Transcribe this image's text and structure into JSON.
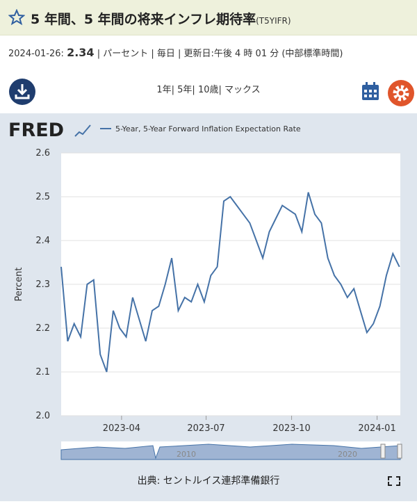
{
  "header": {
    "title": "5 年間、5 年間の将来インフレ期待率",
    "series_id": "(T5YIFR)",
    "date": "2024-01-26:",
    "value": "2.34",
    "meta": "| パーセント | 毎日 | 更新日:午後 4 時 01 分 (中部標準時間)",
    "ranges": "1年| 5年| 10歳| マックス"
  },
  "logo": "FRED",
  "source": "出典: セントルイス連邦準備銀行",
  "navigator": {
    "labels": [
      "2010",
      "2020"
    ]
  },
  "chart_data": {
    "type": "line",
    "y_label": "Percent",
    "x": [
      "2023-01-26",
      "2023-02-02",
      "2023-02-09",
      "2023-02-16",
      "2023-02-23",
      "2023-03-02",
      "2023-03-09",
      "2023-03-16",
      "2023-03-23",
      "2023-03-30",
      "2023-04-06",
      "2023-04-13",
      "2023-04-20",
      "2023-04-27",
      "2023-05-04",
      "2023-05-11",
      "2023-05-18",
      "2023-05-25",
      "2023-06-01",
      "2023-06-08",
      "2023-06-15",
      "2023-06-22",
      "2023-06-29",
      "2023-07-06",
      "2023-07-13",
      "2023-07-20",
      "2023-07-27",
      "2023-08-03",
      "2023-08-10",
      "2023-08-17",
      "2023-08-24",
      "2023-08-31",
      "2023-09-07",
      "2023-09-14",
      "2023-09-21",
      "2023-09-28",
      "2023-10-05",
      "2023-10-12",
      "2023-10-19",
      "2023-10-26",
      "2023-11-02",
      "2023-11-09",
      "2023-11-16",
      "2023-11-23",
      "2023-11-30",
      "2023-12-07",
      "2023-12-14",
      "2023-12-21",
      "2023-12-28",
      "2024-01-04",
      "2024-01-11",
      "2024-01-18",
      "2024-01-25"
    ],
    "series": [
      {
        "name": "5-Year, 5-Year Forward Inflation Expectation Rate",
        "color": "#4572a7",
        "values": [
          2.34,
          2.17,
          2.21,
          2.18,
          2.3,
          2.31,
          2.14,
          2.1,
          2.24,
          2.2,
          2.18,
          2.27,
          2.22,
          2.17,
          2.24,
          2.25,
          2.3,
          2.36,
          2.24,
          2.27,
          2.26,
          2.3,
          2.26,
          2.32,
          2.34,
          2.49,
          2.5,
          2.48,
          2.46,
          2.44,
          2.4,
          2.36,
          2.42,
          2.45,
          2.48,
          2.47,
          2.46,
          2.42,
          2.51,
          2.46,
          2.44,
          2.36,
          2.32,
          2.3,
          2.27,
          2.29,
          2.24,
          2.19,
          2.21,
          2.25,
          2.32,
          2.37,
          2.34
        ]
      }
    ],
    "xlim": [
      "2023-01-26",
      "2024-01-26"
    ],
    "xticks": [
      {
        "value": "2023-04-01",
        "label": "2023-04"
      },
      {
        "value": "2023-07-01",
        "label": "2023-07"
      },
      {
        "value": "2023-10-01",
        "label": "2023-10"
      },
      {
        "value": "2024-01-01",
        "label": "2024-01"
      }
    ],
    "ylim": [
      2.0,
      2.6
    ],
    "yticks": [
      {
        "value": 2.0,
        "label": "2.0"
      },
      2.1,
      2.2,
      2.3,
      2.4,
      2.5,
      2.6
    ],
    "grid": true
  }
}
